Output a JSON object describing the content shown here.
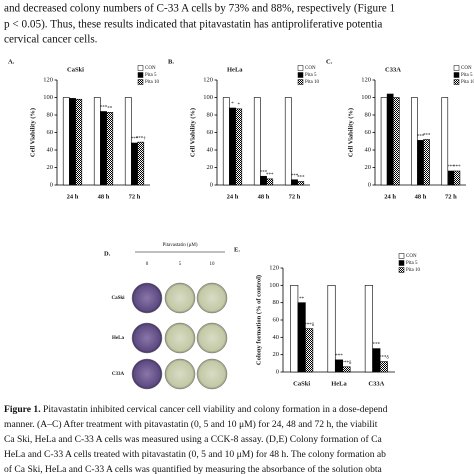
{
  "paragraph": [
    "and decreased colony numbers of C-33 A cells by 73% and 88%, respectively (Figure 1",
    "p < 0.05). Thus, these results indicated that pitavastatin has antiproliferative potentia",
    "cervical cancer cells."
  ],
  "chart_data": [
    {
      "type": "bar",
      "panel": "A.",
      "title": "CaSki",
      "y_label": "Cell Viability (%)",
      "categories": [
        "24 h",
        "48 h",
        "72 h"
      ],
      "series": [
        {
          "name": "CON",
          "color": "#ffffff",
          "values": [
            100,
            100,
            100
          ]
        },
        {
          "name": "Pita 5",
          "color": "#000000",
          "values": [
            99,
            84,
            48
          ],
          "markers": [
            null,
            "***",
            "***"
          ]
        },
        {
          "name": "Pita 10",
          "color": "#000000",
          "pattern": "checker",
          "values": [
            98,
            83,
            49
          ],
          "markers": [
            null,
            "**",
            "***†"
          ]
        }
      ],
      "ylim": [
        0,
        120
      ],
      "yticks": [
        0,
        20,
        40,
        60,
        80,
        100,
        120
      ],
      "legend": "top-right"
    },
    {
      "type": "bar",
      "panel": "B.",
      "title": "HeLa",
      "y_label": "Cell Viability (%)",
      "categories": [
        "24 h",
        "48 h",
        "72 h"
      ],
      "series": [
        {
          "name": "CON",
          "color": "#ffffff",
          "values": [
            100,
            100,
            100
          ]
        },
        {
          "name": "Pita 5",
          "color": "#000000",
          "values": [
            88,
            10,
            6
          ],
          "markers": [
            "*",
            "***",
            "***"
          ]
        },
        {
          "name": "Pita 10",
          "color": "#000000",
          "pattern": "checker",
          "values": [
            87,
            7,
            4
          ],
          "markers": [
            "*",
            "***",
            "***"
          ]
        }
      ],
      "ylim": [
        0,
        120
      ],
      "yticks": [
        0,
        20,
        40,
        60,
        80,
        100,
        120
      ],
      "legend": "top-right"
    },
    {
      "type": "bar",
      "panel": "C.",
      "title": "C33A",
      "y_label": "Cell Viability (%)",
      "categories": [
        "24 h",
        "48 h",
        "72 h"
      ],
      "series": [
        {
          "name": "CON",
          "color": "#ffffff",
          "values": [
            100,
            100,
            100
          ]
        },
        {
          "name": "Pita 5",
          "color": "#000000",
          "values": [
            104,
            51,
            16
          ],
          "markers": [
            null,
            "***",
            "***"
          ]
        },
        {
          "name": "Pita 10",
          "color": "#000000",
          "pattern": "checker",
          "values": [
            100,
            52,
            16
          ],
          "markers": [
            null,
            "***",
            "***"
          ]
        }
      ],
      "ylim": [
        0,
        120
      ],
      "yticks": [
        0,
        20,
        40,
        60,
        80,
        100,
        120
      ],
      "legend": "top-right"
    },
    {
      "type": "bar",
      "panel": "E.",
      "y_label": "Colony formation (% of control)",
      "categories": [
        "CaSki",
        "HeLa",
        "C33A"
      ],
      "series": [
        {
          "name": "CON",
          "color": "#ffffff",
          "values": [
            100,
            100,
            100
          ]
        },
        {
          "name": "Pita 5",
          "color": "#000000",
          "values": [
            80,
            14,
            27
          ],
          "markers": [
            "**",
            "***",
            "***"
          ]
        },
        {
          "name": "Pita 10",
          "color": "#000000",
          "pattern": "checker",
          "values": [
            50,
            6,
            12
          ],
          "markers": [
            "***δ",
            "***δ",
            "***δ"
          ]
        }
      ],
      "ylim": [
        0,
        120
      ],
      "yticks": [
        0,
        20,
        40,
        60,
        80,
        100,
        120
      ],
      "legend": "top-right"
    }
  ],
  "panel_d": {
    "panel": "D.",
    "title": "Pitavastatin (μM)",
    "columns": [
      "0",
      "5",
      "10"
    ],
    "rows": [
      "CaSki",
      "HeLa",
      "C33A"
    ]
  },
  "caption": {
    "label": "Figure 1.",
    "lines": [
      "Pitavastatin inhibited cervical cancer cell viability and colony formation in a dose-depend",
      "manner. (A–C) After treatment with pitavastatin (0, 5 and 10 μM) for 24, 48 and 72 h, the viabilit",
      "Ca Ski, HeLa and C-33 A cells was measured using a CCK-8 assay. (D,E) Colony formation of Ca",
      "HeLa and C-33 A cells treated with pitavastatin (0, 5 and 10 μM) for 48 h. The colony formation ab",
      "of Ca Ski, HeLa and C-33 A cells was quantified by measuring the absorbance of the solution obta"
    ]
  }
}
